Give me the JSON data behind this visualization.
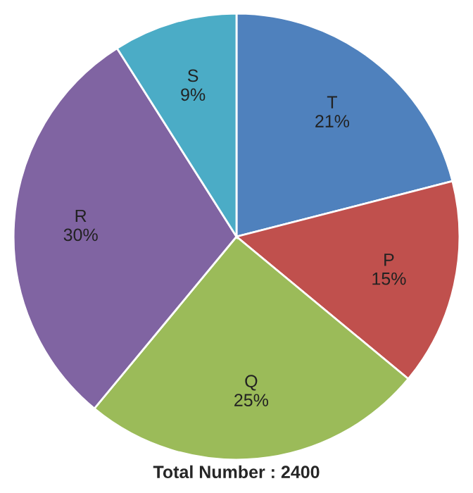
{
  "chart_data": {
    "type": "pie",
    "categories": [
      "T",
      "P",
      "Q",
      "R",
      "S"
    ],
    "values": [
      21,
      15,
      25,
      30,
      9
    ],
    "value_labels": [
      "21%",
      "15%",
      "25%",
      "30%",
      "9%"
    ],
    "colors": [
      "#4f81bd",
      "#c0504d",
      "#9bbb59",
      "#8064a2",
      "#4bacc6"
    ],
    "annotations": [
      "Total Number : 2400"
    ],
    "legend": false
  }
}
